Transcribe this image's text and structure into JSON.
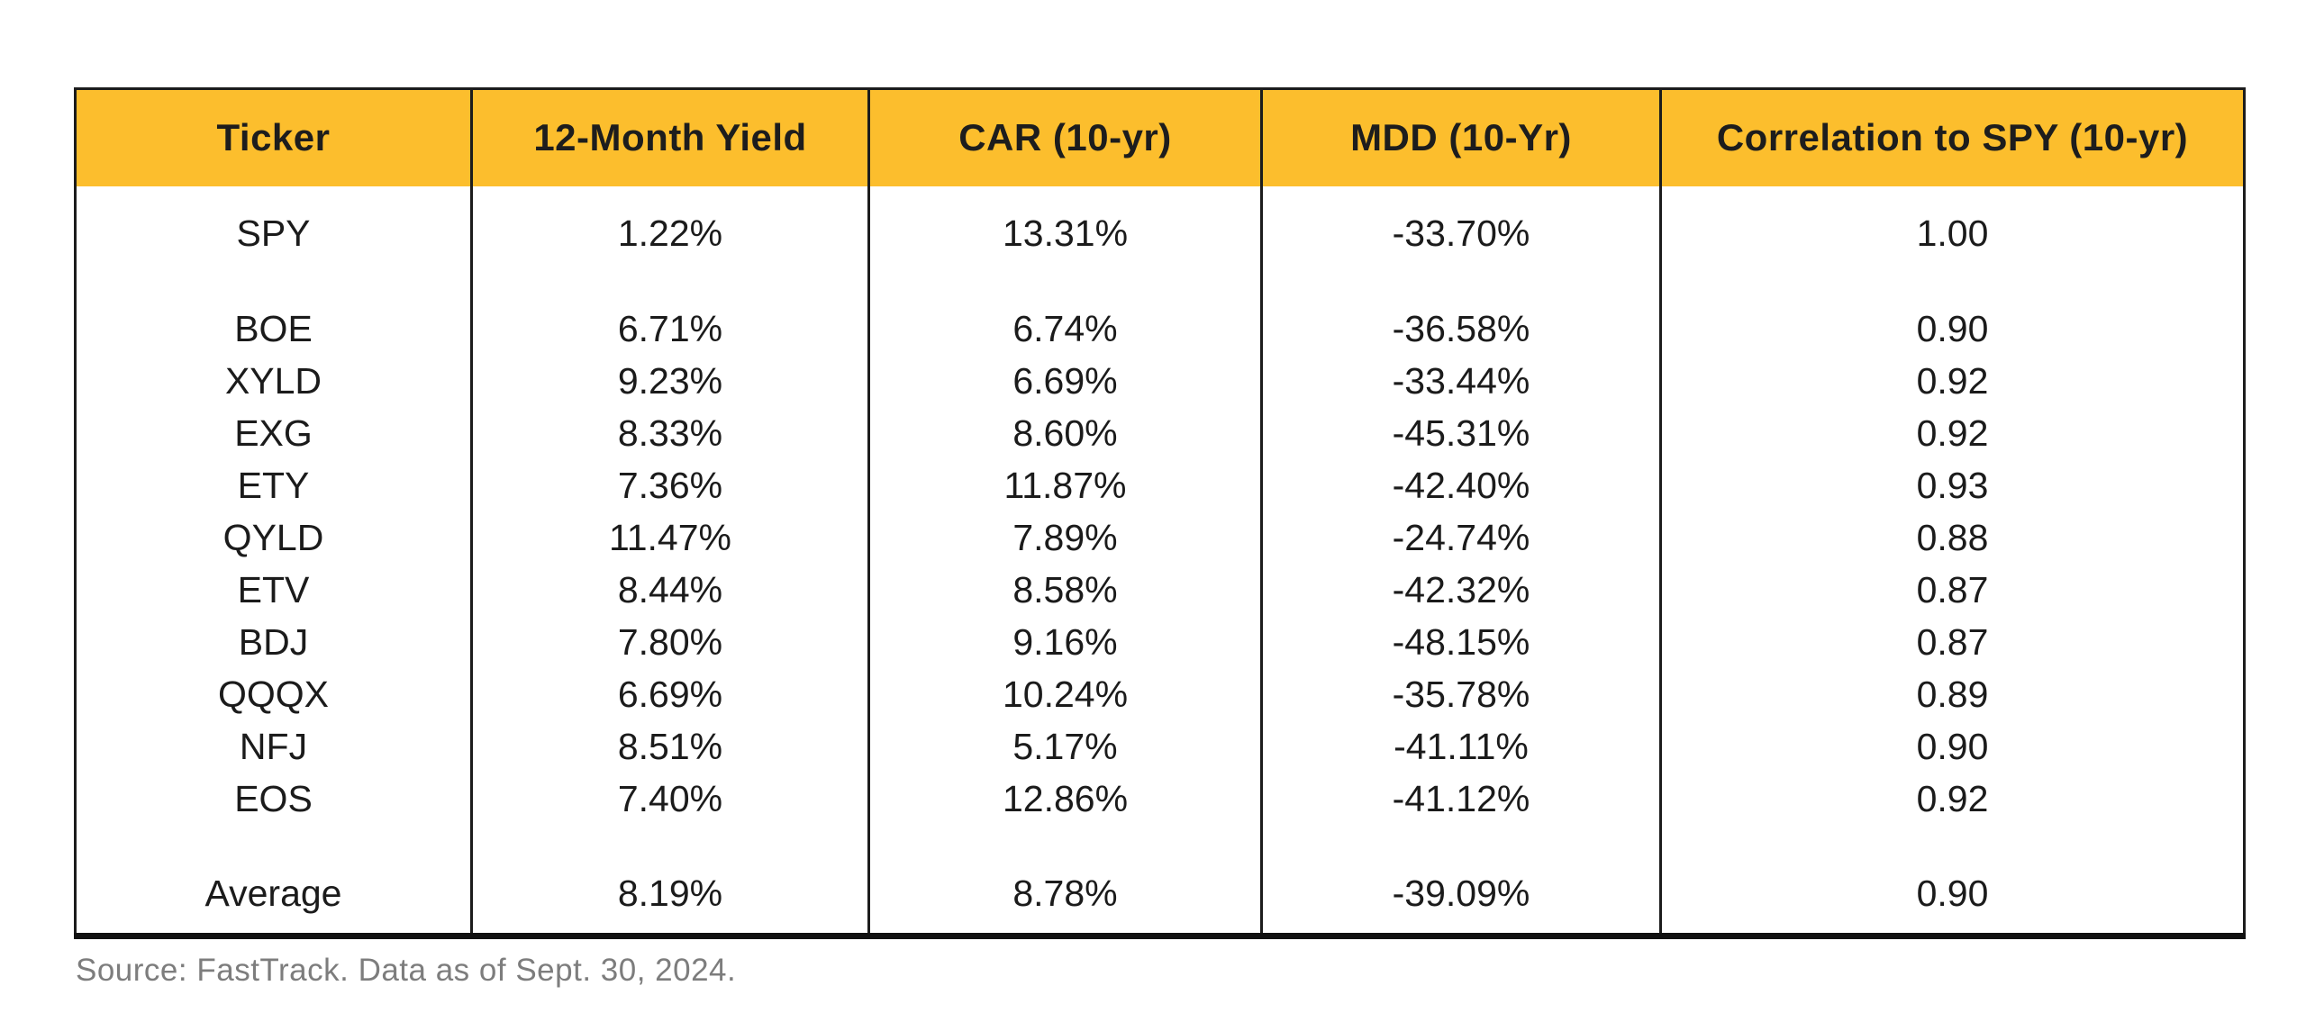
{
  "colors": {
    "header_bg": "#FCBE2D",
    "header_text": "#1d1d1d",
    "body_text": "#1b1b1b",
    "border": "#1c1c1c",
    "source_text": "#7d7d7d"
  },
  "table": {
    "headers": [
      "Ticker",
      "12-Month Yield",
      "CAR (10-yr)",
      "MDD (10-Yr)",
      "Correlation to SPY (10-yr)"
    ],
    "spy_row": {
      "ticker": "SPY",
      "yield_12m": "1.22%",
      "car_10yr": "13.31%",
      "mdd_10yr": "-33.70%",
      "corr_spy": "1.00"
    },
    "fund_rows": [
      {
        "ticker": "BOE",
        "yield_12m": "6.71%",
        "car_10yr": "6.74%",
        "mdd_10yr": "-36.58%",
        "corr_spy": "0.90"
      },
      {
        "ticker": "XYLD",
        "yield_12m": "9.23%",
        "car_10yr": "6.69%",
        "mdd_10yr": "-33.44%",
        "corr_spy": "0.92"
      },
      {
        "ticker": "EXG",
        "yield_12m": "8.33%",
        "car_10yr": "8.60%",
        "mdd_10yr": "-45.31%",
        "corr_spy": "0.92"
      },
      {
        "ticker": "ETY",
        "yield_12m": "7.36%",
        "car_10yr": "11.87%",
        "mdd_10yr": "-42.40%",
        "corr_spy": "0.93"
      },
      {
        "ticker": "QYLD",
        "yield_12m": "11.47%",
        "car_10yr": "7.89%",
        "mdd_10yr": "-24.74%",
        "corr_spy": "0.88"
      },
      {
        "ticker": "ETV",
        "yield_12m": "8.44%",
        "car_10yr": "8.58%",
        "mdd_10yr": "-42.32%",
        "corr_spy": "0.87"
      },
      {
        "ticker": "BDJ",
        "yield_12m": "7.80%",
        "car_10yr": "9.16%",
        "mdd_10yr": "-48.15%",
        "corr_spy": "0.87"
      },
      {
        "ticker": "QQQX",
        "yield_12m": "6.69%",
        "car_10yr": "10.24%",
        "mdd_10yr": "-35.78%",
        "corr_spy": "0.89"
      },
      {
        "ticker": "NFJ",
        "yield_12m": "8.51%",
        "car_10yr": "5.17%",
        "mdd_10yr": "-41.11%",
        "corr_spy": "0.90"
      },
      {
        "ticker": "EOS",
        "yield_12m": "7.40%",
        "car_10yr": "12.86%",
        "mdd_10yr": "-41.12%",
        "corr_spy": "0.92"
      }
    ],
    "average_row": {
      "ticker": "Average",
      "yield_12m": "8.19%",
      "car_10yr": "8.78%",
      "mdd_10yr": "-39.09%",
      "corr_spy": "0.90"
    }
  },
  "source": "Source: FastTrack. Data as of Sept. 30, 2024.",
  "chart_data": {
    "type": "table",
    "title": "",
    "columns": [
      "Ticker",
      "12-Month Yield",
      "CAR (10-yr)",
      "MDD (10-Yr)",
      "Correlation to SPY (10-yr)"
    ],
    "rows": [
      [
        "SPY",
        "1.22%",
        "13.31%",
        "-33.70%",
        "1.00"
      ],
      [
        "BOE",
        "6.71%",
        "6.74%",
        "-36.58%",
        "0.90"
      ],
      [
        "XYLD",
        "9.23%",
        "6.69%",
        "-33.44%",
        "0.92"
      ],
      [
        "EXG",
        "8.33%",
        "8.60%",
        "-45.31%",
        "0.92"
      ],
      [
        "ETY",
        "7.36%",
        "11.87%",
        "-42.40%",
        "0.93"
      ],
      [
        "QYLD",
        "11.47%",
        "7.89%",
        "-24.74%",
        "0.88"
      ],
      [
        "ETV",
        "8.44%",
        "8.58%",
        "-42.32%",
        "0.87"
      ],
      [
        "BDJ",
        "7.80%",
        "9.16%",
        "-48.15%",
        "0.87"
      ],
      [
        "QQQX",
        "6.69%",
        "10.24%",
        "-35.78%",
        "0.89"
      ],
      [
        "NFJ",
        "8.51%",
        "5.17%",
        "-41.11%",
        "0.90"
      ],
      [
        "EOS",
        "7.40%",
        "12.86%",
        "-41.12%",
        "0.92"
      ],
      [
        "Average",
        "8.19%",
        "8.78%",
        "-39.09%",
        "0.90"
      ]
    ],
    "source_note": "Source: FastTrack. Data as of Sept. 30, 2024."
  }
}
